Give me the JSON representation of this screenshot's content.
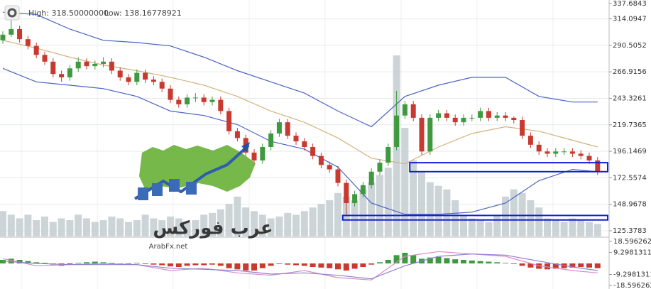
{
  "header": {
    "high": "High: 318.50000000",
    "low": "Low: 138.16778921"
  },
  "watermark": {
    "site": "ArabFx.net",
    "brand": "عرب فوركس"
  },
  "chart_data": {
    "type": "candlestick",
    "ylim": [
      120.3,
      330.9
    ],
    "yticks": [
      337.6843,
      314.0947,
      290.5052,
      266.9156,
      243.3261,
      219.7365,
      196.1469,
      172.5574,
      148.9678,
      125.3783
    ],
    "grid": true,
    "up_color": "#3f9a3f",
    "down_color": "#c8392f",
    "candles": [
      [
        295,
        303,
        292,
        300
      ],
      [
        300,
        318.5,
        298,
        305
      ],
      [
        305,
        308,
        293,
        296
      ],
      [
        296,
        299,
        287,
        290
      ],
      [
        290,
        293,
        279,
        282
      ],
      [
        282,
        285,
        273,
        276
      ],
      [
        276,
        279,
        262,
        265
      ],
      [
        265,
        268,
        258,
        262
      ],
      [
        262,
        273,
        259,
        270
      ],
      [
        270,
        280,
        267,
        276
      ],
      [
        276,
        279,
        269,
        272
      ],
      [
        272,
        277,
        269,
        274
      ],
      [
        274,
        280,
        271,
        276
      ],
      [
        276,
        279,
        265,
        268
      ],
      [
        268,
        271,
        259,
        262
      ],
      [
        262,
        265,
        255,
        258
      ],
      [
        258,
        269,
        255,
        266
      ],
      [
        266,
        269,
        257,
        260
      ],
      [
        260,
        263,
        255,
        258
      ],
      [
        258,
        261,
        249,
        252
      ],
      [
        252,
        255,
        239,
        242
      ],
      [
        242,
        245,
        235,
        238
      ],
      [
        238,
        247,
        235,
        244
      ],
      [
        244,
        248,
        240,
        244
      ],
      [
        244,
        247,
        237,
        240
      ],
      [
        240,
        245,
        237,
        242
      ],
      [
        242,
        245,
        229,
        232
      ],
      [
        232,
        235,
        211,
        214
      ],
      [
        214,
        217,
        205,
        208
      ],
      [
        208,
        211,
        192,
        195
      ],
      [
        195,
        198,
        185,
        188
      ],
      [
        188,
        203,
        185,
        200
      ],
      [
        200,
        215,
        197,
        212
      ],
      [
        212,
        225,
        209,
        222
      ],
      [
        222,
        225,
        207,
        210
      ],
      [
        210,
        213,
        202,
        205
      ],
      [
        205,
        208,
        197,
        200
      ],
      [
        200,
        203,
        189,
        192
      ],
      [
        192,
        195,
        181,
        184
      ],
      [
        184,
        187,
        177,
        180
      ],
      [
        180,
        183,
        165,
        168
      ],
      [
        168,
        171,
        138.2,
        150
      ],
      [
        150,
        161,
        147,
        158
      ],
      [
        158,
        169,
        155,
        166
      ],
      [
        166,
        181,
        163,
        178
      ],
      [
        178,
        189,
        175,
        186
      ],
      [
        186,
        203,
        183,
        200
      ],
      [
        200,
        250,
        197,
        228
      ],
      [
        228,
        241,
        225,
        238
      ],
      [
        238,
        241,
        223,
        226
      ],
      [
        226,
        229,
        193,
        196
      ],
      [
        196,
        229,
        193,
        226
      ],
      [
        226,
        233,
        223,
        230
      ],
      [
        230,
        233,
        223,
        226
      ],
      [
        226,
        229,
        219,
        222
      ],
      [
        222,
        229,
        219,
        226
      ],
      [
        226,
        229,
        223,
        226
      ],
      [
        226,
        235,
        223,
        232
      ],
      [
        232,
        235,
        223,
        226
      ],
      [
        226,
        231,
        223,
        228
      ],
      [
        228,
        231,
        223,
        226
      ],
      [
        226,
        227,
        221,
        224
      ],
      [
        224,
        227,
        207,
        210
      ],
      [
        210,
        213,
        199,
        202
      ],
      [
        202,
        205,
        193,
        196
      ],
      [
        196,
        199,
        191,
        194
      ],
      [
        194,
        199,
        191,
        196
      ],
      [
        196,
        199,
        193,
        196
      ],
      [
        196,
        199,
        191,
        194
      ],
      [
        194,
        197,
        189,
        192
      ],
      [
        192,
        195,
        185,
        188
      ],
      [
        188,
        191,
        175,
        178
      ]
    ],
    "volume": [
      14,
      12,
      10,
      12,
      9,
      11,
      8,
      10,
      9,
      12,
      10,
      8,
      9,
      11,
      10,
      8,
      9,
      12,
      10,
      9,
      11,
      10,
      8,
      9,
      12,
      13,
      15,
      18,
      22,
      16,
      14,
      12,
      10,
      11,
      13,
      12,
      14,
      16,
      18,
      20,
      24,
      22,
      20,
      26,
      30,
      34,
      38,
      100,
      60,
      42,
      36,
      30,
      28,
      26,
      20,
      12,
      10,
      9,
      8,
      12,
      22,
      26,
      24,
      20,
      16,
      10,
      9,
      8,
      10,
      9,
      8,
      7
    ],
    "volume_color": "#c3ccd0",
    "bands": {
      "x": [
        0,
        4,
        8,
        12,
        16,
        20,
        24,
        28,
        32,
        36,
        40,
        44,
        48,
        52,
        56,
        60,
        64,
        68,
        71
      ],
      "upper": [
        320,
        318,
        305,
        295,
        293,
        290,
        280,
        268,
        258,
        248,
        232,
        218,
        245,
        255,
        262,
        262,
        245,
        240,
        240
      ],
      "middle": [
        295,
        288,
        280,
        273,
        268,
        262,
        255,
        245,
        232,
        222,
        208,
        190,
        185,
        200,
        212,
        218,
        214,
        206,
        200
      ],
      "lower": [
        270,
        258,
        255,
        252,
        245,
        232,
        228,
        220,
        205,
        198,
        182,
        150,
        140,
        140,
        142,
        150,
        170,
        180,
        178
      ],
      "band_color": "#4a62c4",
      "middle_color": "#d4b27a"
    },
    "zones": [
      {
        "from": 49,
        "low": 178,
        "high": 186
      },
      {
        "from": 41,
        "low": 135,
        "high": 139
      }
    ],
    "zone_color": "#1420d8",
    "macd": {
      "ylim": [
        -21.6,
        21.6
      ],
      "yticks": [
        18.5962622,
        9.29813111,
        -9.29813111,
        -18.5962622
      ],
      "histogram": [
        3,
        4,
        3,
        2,
        1,
        0.5,
        -1,
        -2,
        -1,
        0.5,
        1,
        1.5,
        1,
        0.5,
        -0.5,
        -1,
        0.5,
        -0.5,
        -1,
        -1.5,
        -2.5,
        -3,
        -2,
        -1.5,
        -1.5,
        -1,
        -2,
        -4,
        -5,
        -6,
        -6,
        -4,
        -2,
        -0.5,
        -1,
        -1.5,
        -2,
        -3,
        -3.5,
        -4,
        -5,
        -6,
        -4.5,
        -3,
        -1,
        1,
        3,
        7,
        9,
        7,
        4,
        5,
        5.5,
        4.5,
        3.5,
        3,
        2.5,
        2,
        1.5,
        1,
        0.5,
        -0.5,
        -2,
        -3.5,
        -4.5,
        -5,
        -4.5,
        -4,
        -3.5,
        -3,
        -3.5,
        -4
      ],
      "line": [
        4,
        -2,
        -1,
        0,
        -1,
        -6,
        -4,
        -8,
        -10,
        -6,
        -12,
        -14,
        6,
        10,
        8,
        6,
        -2,
        -6,
        -8
      ],
      "signal": [
        2,
        0,
        -1,
        -1,
        -1,
        -4,
        -5,
        -6,
        -9,
        -8,
        -10,
        -13,
        -2,
        6,
        8,
        7,
        2,
        -3,
        -6
      ],
      "line_color": "#d98cc6",
      "signal_color": "#8c80d2"
    }
  }
}
